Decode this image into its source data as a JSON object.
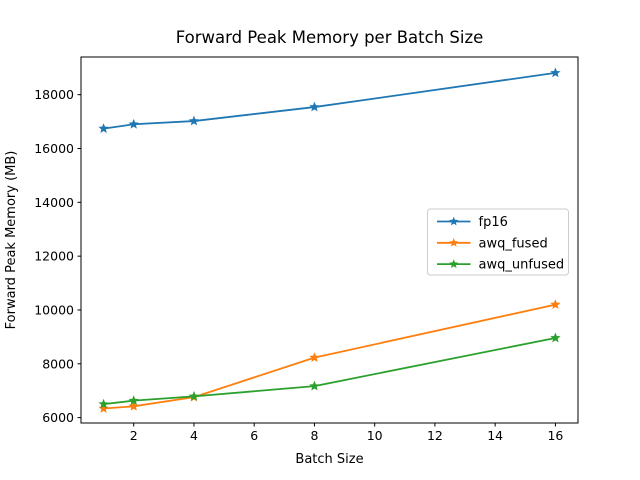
{
  "figure": {
    "background": "#ffffff"
  },
  "chart_data": {
    "type": "line",
    "title": "Forward Peak Memory per Batch Size",
    "xlabel": "Batch Size",
    "ylabel": "Forward Peak Memory (MB)",
    "x": [
      1,
      2,
      4,
      8,
      16
    ],
    "series": [
      {
        "name": "fp16",
        "color": "#1f77b4",
        "marker": "star",
        "values": [
          16740,
          16900,
          17020,
          17540,
          18810
        ]
      },
      {
        "name": "awq_fused",
        "color": "#ff7f0e",
        "marker": "star",
        "values": [
          6340,
          6420,
          6760,
          8230,
          10200
        ]
      },
      {
        "name": "awq_unfused",
        "color": "#2ca02c",
        "marker": "star",
        "values": [
          6500,
          6630,
          6790,
          7170,
          8960
        ]
      }
    ],
    "xlim": [
      0.25,
      16.75
    ],
    "ylim": [
      5800,
      19400
    ],
    "xticks": [
      2,
      4,
      6,
      8,
      10,
      12,
      14,
      16
    ],
    "yticks": [
      6000,
      8000,
      10000,
      12000,
      14000,
      16000,
      18000
    ],
    "grid": false,
    "legend": {
      "position": "right-center",
      "entries": [
        "fp16",
        "awq_fused",
        "awq_unfused"
      ]
    }
  },
  "style": {
    "text_color": "#000000",
    "spine_color": "#000000",
    "legend_border_color": "#cccccc",
    "legend_background": "rgba(255,255,255,0.8)"
  }
}
